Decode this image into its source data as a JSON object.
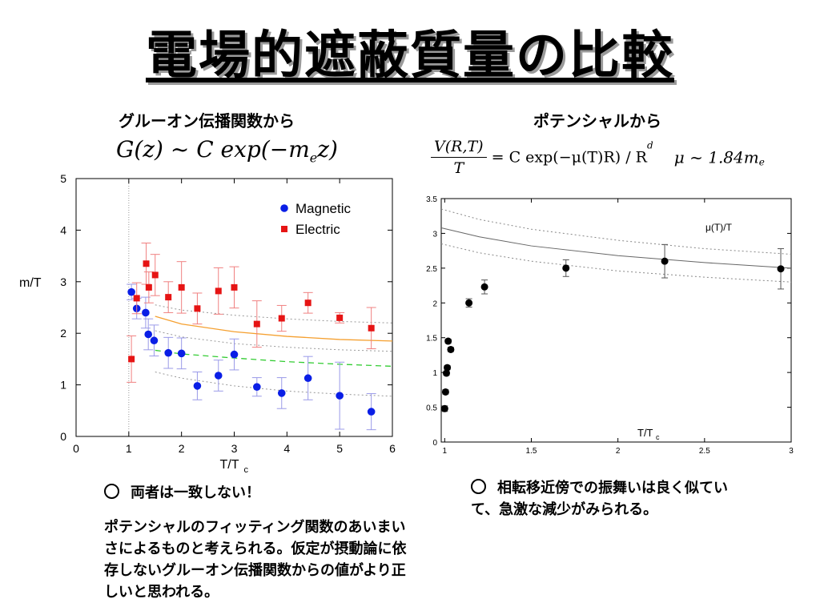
{
  "slide": {
    "title": "電場的遮蔽質量の比較",
    "left_heading": "グルーオン伝播関数から",
    "right_heading": "ポテンシャルから",
    "left_formula": {
      "lhs": "G(z) ~ C exp(−m",
      "sub": "e",
      "tail": "z)"
    },
    "right_formula": {
      "num": "V(R,T)",
      "den": "T",
      "rhs": "= C exp(−μ(T)R) / R",
      "sup": "d",
      "mu_text": "μ ~ 1.84m",
      "mu_sub": "e"
    },
    "notes": {
      "left_marker": "両者は一致しない！",
      "left_body": "ポテンシャルのフィッティング関数のあいまいさによるものと考えられる。仮定が摂動論に依存しないグルーオン伝播関数からの値がより正しいと思われる。",
      "right_marker": "相転移近傍での振舞いは良く似ていて、急激な減少がみられる。"
    }
  },
  "chart_data": [
    {
      "type": "scatter",
      "xlabel": "T/T",
      "xlabel_sub": "c",
      "ylabel": "m/T",
      "xlim": [
        0,
        6
      ],
      "ylim": [
        0,
        5
      ],
      "xticks": [
        0,
        1,
        2,
        3,
        4,
        5,
        6
      ],
      "yticks": [
        0,
        1,
        2,
        3,
        4,
        5
      ],
      "legend_position": "top-right",
      "series": [
        {
          "name": "Magnetic",
          "color": "#0a1ee6",
          "marker": "circle",
          "points": [
            [
              1.05,
              2.8,
              0.15
            ],
            [
              1.15,
              2.48,
              0.2
            ],
            [
              1.32,
              2.4,
              0.3
            ],
            [
              1.37,
              1.98,
              0.3
            ],
            [
              1.48,
              1.86,
              0.3
            ],
            [
              1.75,
              1.62,
              0.3
            ],
            [
              2.0,
              1.61,
              0.3
            ],
            [
              2.3,
              0.98,
              0.27
            ],
            [
              2.7,
              1.18,
              0.3
            ],
            [
              3.0,
              1.59,
              0.3
            ],
            [
              3.43,
              0.96,
              0.18
            ],
            [
              3.9,
              0.84,
              0.3
            ],
            [
              4.4,
              1.13,
              0.42
            ],
            [
              5.0,
              0.79,
              0.65
            ],
            [
              5.6,
              0.48,
              0.35
            ]
          ]
        },
        {
          "name": "Electric",
          "color": "#e61414",
          "marker": "square",
          "points": [
            [
              1.05,
              1.5,
              0.45
            ],
            [
              1.15,
              2.68,
              0.3
            ],
            [
              1.33,
              3.35,
              0.4
            ],
            [
              1.38,
              2.89,
              0.3
            ],
            [
              1.5,
              3.13,
              0.4
            ],
            [
              1.75,
              2.7,
              0.3
            ],
            [
              2.0,
              2.89,
              0.5
            ],
            [
              2.3,
              2.48,
              0.3
            ],
            [
              2.7,
              2.82,
              0.45
            ],
            [
              3.0,
              2.89,
              0.4
            ],
            [
              3.43,
              2.18,
              0.45
            ],
            [
              3.9,
              2.29,
              0.25
            ],
            [
              4.4,
              2.59,
              0.2
            ],
            [
              5.0,
              2.3,
              0.1
            ],
            [
              5.6,
              2.1,
              0.4
            ]
          ]
        }
      ],
      "curves": [
        {
          "color": "#f5a030",
          "style": "solid",
          "points": [
            [
              1.5,
              2.33
            ],
            [
              2,
              2.18
            ],
            [
              3,
              2.03
            ],
            [
              4,
              1.94
            ],
            [
              5,
              1.88
            ],
            [
              6,
              1.85
            ]
          ]
        },
        {
          "color": "#999999",
          "style": "dotted",
          "points": [
            [
              1.5,
              2.55
            ],
            [
              2,
              2.45
            ],
            [
              3,
              2.35
            ],
            [
              4,
              2.28
            ],
            [
              5,
              2.23
            ],
            [
              6,
              2.2
            ]
          ]
        },
        {
          "color": "#999999",
          "style": "dotted",
          "points": [
            [
              1.5,
              2.05
            ],
            [
              2,
              1.93
            ],
            [
              3,
              1.8
            ],
            [
              4,
              1.73
            ],
            [
              5,
              1.68
            ],
            [
              6,
              1.65
            ]
          ]
        },
        {
          "color": "#33cc33",
          "style": "dashed",
          "points": [
            [
              1.5,
              1.67
            ],
            [
              2,
              1.6
            ],
            [
              3,
              1.52
            ],
            [
              4,
              1.45
            ],
            [
              5,
              1.4
            ],
            [
              6,
              1.36
            ]
          ]
        },
        {
          "color": "#999999",
          "style": "dotted",
          "points": [
            [
              1.5,
              1.25
            ],
            [
              2,
              1.13
            ],
            [
              3,
              0.98
            ],
            [
              4,
              0.88
            ],
            [
              5,
              0.82
            ],
            [
              6,
              0.78
            ]
          ]
        }
      ],
      "vline_x": 1.0
    },
    {
      "type": "scatter",
      "xlabel": "T/T",
      "xlabel_sub": "c",
      "curve_label": "μ(T)/T",
      "xlim": [
        0.98,
        3
      ],
      "ylim": [
        0,
        3.5
      ],
      "xticks": [
        "1",
        "1.5",
        "2",
        "2.5",
        "3"
      ],
      "yticks": [
        "0",
        "0.5",
        "1",
        "1.5",
        "2",
        "2.5",
        "3",
        "3.5"
      ],
      "series": [
        {
          "color": "#000000",
          "marker": "circle",
          "points": [
            [
              1.0,
              0.48,
              0.04
            ],
            [
              1.005,
              0.72,
              0.03
            ],
            [
              1.01,
              0.99,
              0.03
            ],
            [
              1.015,
              1.07,
              0.03
            ],
            [
              1.02,
              1.45,
              0.03
            ],
            [
              1.035,
              1.33,
              0.03
            ],
            [
              1.14,
              2.0,
              0.06
            ],
            [
              1.23,
              2.23,
              0.1
            ],
            [
              1.7,
              2.5,
              0.12
            ],
            [
              2.27,
              2.6,
              0.24
            ],
            [
              2.94,
              2.49,
              0.29
            ]
          ]
        }
      ],
      "curves": [
        {
          "color": "#666666",
          "style": "solid",
          "points": [
            [
              0.98,
              3.08
            ],
            [
              1.2,
              2.95
            ],
            [
              1.5,
              2.82
            ],
            [
              2,
              2.68
            ],
            [
              2.5,
              2.58
            ],
            [
              3,
              2.5
            ]
          ]
        },
        {
          "color": "#888888",
          "style": "dotted",
          "points": [
            [
              0.98,
              3.35
            ],
            [
              1.2,
              3.2
            ],
            [
              1.5,
              3.06
            ],
            [
              2,
              2.9
            ],
            [
              2.5,
              2.78
            ],
            [
              3,
              2.7
            ]
          ]
        },
        {
          "color": "#888888",
          "style": "dotted",
          "points": [
            [
              0.98,
              2.85
            ],
            [
              1.2,
              2.72
            ],
            [
              1.5,
              2.6
            ],
            [
              2,
              2.46
            ],
            [
              2.5,
              2.37
            ],
            [
              3,
              2.3
            ]
          ]
        }
      ]
    }
  ]
}
